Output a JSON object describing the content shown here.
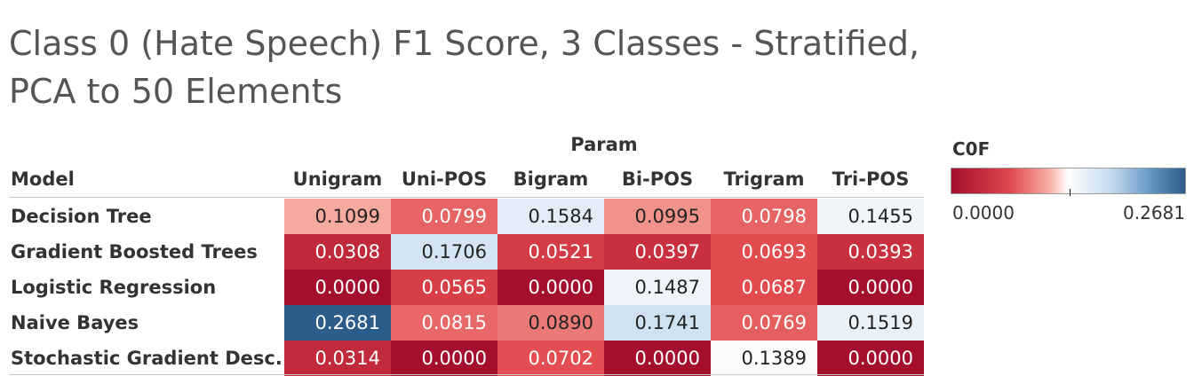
{
  "chart_data": {
    "type": "heatmap",
    "title": "Class 0 (Hate Speech) F1 Score, 3 Classes - Stratified, PCA to 50 Elements",
    "column_group_label": "Param",
    "row_header": "Model",
    "columns": [
      "Unigram",
      "Uni-POS",
      "Bigram",
      "Bi-POS",
      "Trigram",
      "Tri-POS"
    ],
    "rows": [
      "Decision Tree",
      "Gradient Boosted Trees",
      "Logistic Regression",
      "Naive Bayes",
      "Stochastic Gradient Desc."
    ],
    "values": [
      [
        0.1099,
        0.0799,
        0.1584,
        0.0995,
        0.0798,
        0.1455
      ],
      [
        0.0308,
        0.1706,
        0.0521,
        0.0397,
        0.0693,
        0.0393
      ],
      [
        0.0,
        0.0565,
        0.0,
        0.1487,
        0.0687,
        0.0
      ],
      [
        0.2681,
        0.0815,
        0.089,
        0.1741,
        0.0769,
        0.1519
      ],
      [
        0.0314,
        0.0,
        0.0702,
        0.0,
        0.1389,
        0.0
      ]
    ],
    "legend": {
      "title": "C0F",
      "min": 0.0,
      "max": 0.2681,
      "min_label": "0.0000",
      "max_label": "0.2681",
      "placement": "top-right"
    },
    "colors": {
      "low": "#a50f2e",
      "mid": "#ffffff",
      "high": "#2b5c8a"
    }
  }
}
